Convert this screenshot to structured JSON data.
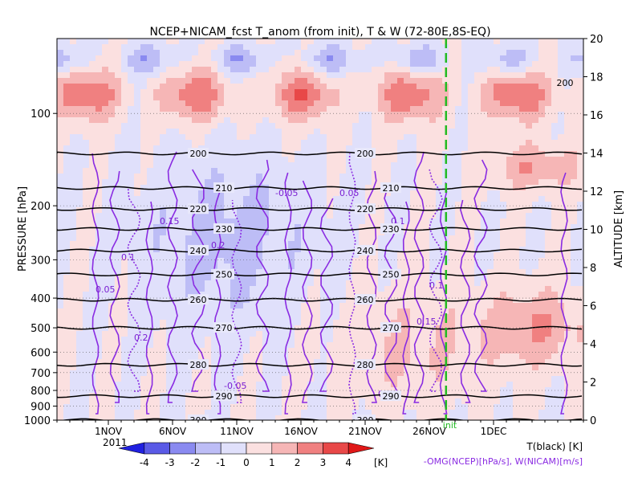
{
  "chart_data": {
    "type": "heatmap",
    "title": "NCEP+NICAM_fcst T_anom (from init), T & W  (72-80E,8S-EQ)",
    "ylabel_left": "PRESSURE [hPa]",
    "ylabel_right": "ALTITUDE [km]",
    "pressure_ticks": [
      100,
      200,
      300,
      400,
      500,
      600,
      700,
      800,
      900,
      1000
    ],
    "altitude_ticks": [
      0,
      2,
      4,
      6,
      8,
      10,
      12,
      14,
      16,
      18,
      20
    ],
    "pressure_range": [
      1000,
      57
    ],
    "time_range_days": [
      "2011-10-28",
      "2011-12-08"
    ],
    "x_ticks": [
      {
        "label": "1NOV",
        "day": 4
      },
      {
        "label": "6NOV",
        "day": 9
      },
      {
        "label": "11NOV",
        "day": 14
      },
      {
        "label": "16NOV",
        "day": 19
      },
      {
        "label": "21NOV",
        "day": 24
      },
      {
        "label": "26NOV",
        "day": 29
      },
      {
        "label": "1DEC",
        "day": 34
      }
    ],
    "year_label": "2011",
    "init_marker": {
      "day": 30.3,
      "label": "init",
      "color": "#22bb22"
    },
    "colorbar": {
      "levels": [
        "-4",
        "-3",
        "-2",
        "-1",
        "0",
        "1",
        "2",
        "3",
        "4"
      ],
      "unit": "[K]",
      "colors": [
        "#2020e0",
        "#5a5ae6",
        "#8a8af0",
        "#bdbdf6",
        "#e0e0fb",
        "#fbe0e0",
        "#f6b6b6",
        "#f08080",
        "#e84848",
        "#e01818"
      ]
    },
    "legend_T": "T(black) [K]",
    "legend_W": "-OMG(NCEP)[hPa/s], W(NICAM)[m/s]",
    "temperature_contours": [
      {
        "label": "200",
        "pressure": 135
      },
      {
        "label": "210",
        "pressure": 175
      },
      {
        "label": "220",
        "pressure": 205
      },
      {
        "label": "230",
        "pressure": 238
      },
      {
        "label": "240",
        "pressure": 280
      },
      {
        "label": "250",
        "pressure": 335
      },
      {
        "label": "260",
        "pressure": 405
      },
      {
        "label": "270",
        "pressure": 500
      },
      {
        "label": "280",
        "pressure": 660
      },
      {
        "label": "290",
        "pressure": 835
      },
      {
        "label": "300",
        "pressure": 1000
      }
    ],
    "w_labels": [
      "0.05",
      "0.1",
      "0.15",
      "0.2",
      "-0.05"
    ],
    "top_contour_label": "200"
  }
}
